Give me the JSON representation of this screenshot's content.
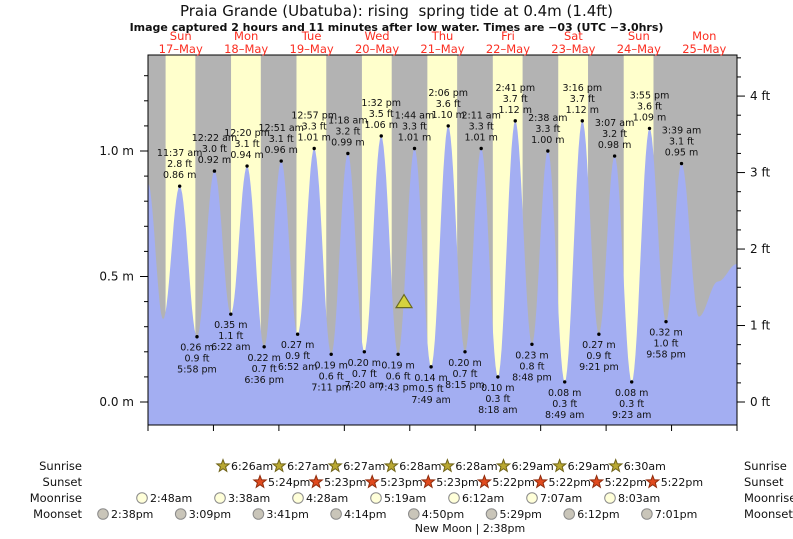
{
  "title": "Praia Grande (Ubatuba): rising  spring tide at 0.4m (1.4ft)",
  "subtitle": "Image captured 2 hours and 11 minutes after low water. Times are −03 (UTC −3.0hrs)",
  "colors": {
    "night_band": "#b3b3b3",
    "day_band": "#ffffcc",
    "water": "#a3aef2",
    "day_label_red": "#fb2d20",
    "annotation_text": "#111111",
    "sunrise_star": "#b9a832",
    "sunrise_star_outline": "#6f6318",
    "sunset_star": "#e04a1e",
    "sunset_star_outline": "#8f2c0c",
    "moonrise_circle": "#ffffd9",
    "moonset_circle": "#c9c5b9",
    "moon_outline": "#8a8a8a",
    "marker_fill": "#d6d23e",
    "marker_outline": "#6b6b1f"
  },
  "chart_data": {
    "type": "area",
    "title": "Praia Grande (Ubatuba): rising  spring tide at 0.4m (1.4ft)",
    "subtitle": "Image captured 2 hours and 11 minutes after low water. Times are −03 (UTC −3.0hrs)",
    "x_axis": {
      "span_days": 9,
      "days": [
        {
          "dow": "Sun",
          "date": "17–May"
        },
        {
          "dow": "Mon",
          "date": "18–May"
        },
        {
          "dow": "Tue",
          "date": "19–May"
        },
        {
          "dow": "Wed",
          "date": "20–May"
        },
        {
          "dow": "Thu",
          "date": "21–May"
        },
        {
          "dow": "Fri",
          "date": "22–May"
        },
        {
          "dow": "Sat",
          "date": "23–May"
        },
        {
          "dow": "Sun",
          "date": "24–May"
        },
        {
          "dow": "Mon",
          "date": "25–May"
        }
      ]
    },
    "y_axis_left": {
      "unit": "m",
      "tick_labels": [
        "0.0 m",
        "0.5 m",
        "1.0 m"
      ],
      "tick_values": [
        0.0,
        0.5,
        1.0
      ],
      "range_m": [
        -0.09,
        1.38
      ]
    },
    "y_axis_right": {
      "unit": "ft",
      "tick_labels": [
        "0 ft",
        "1 ft",
        "2 ft",
        "3 ft",
        "4 ft"
      ],
      "tick_values": [
        0,
        1,
        2,
        3,
        4
      ]
    },
    "tide_events": [
      {
        "t": 11.617,
        "type": "high",
        "m": 0.86,
        "labels": [
          "11:37 am",
          "2.8 ft",
          "0.86 m"
        ]
      },
      {
        "t": 17.967,
        "type": "low",
        "m": 0.26,
        "labels": [
          "0.26 m",
          "0.9 ft",
          "5:58 pm"
        ]
      },
      {
        "t": 24.367,
        "type": "high",
        "m": 0.92,
        "labels": [
          "12:22 am",
          "3.0 ft",
          "0.92 m"
        ]
      },
      {
        "t": 30.367,
        "type": "low",
        "m": 0.35,
        "labels": [
          "0.35 m",
          "1.1 ft",
          "6:22 am"
        ]
      },
      {
        "t": 36.333,
        "type": "high",
        "m": 0.94,
        "labels": [
          "12:20 pm",
          "3.1 ft",
          "0.94 m"
        ]
      },
      {
        "t": 42.6,
        "type": "low",
        "m": 0.22,
        "labels": [
          "0.22 m",
          "0.7 ft",
          "6:36 pm"
        ]
      },
      {
        "t": 48.85,
        "type": "high",
        "m": 0.96,
        "labels": [
          "12:51 am",
          "3.1 ft",
          "0.96 m"
        ]
      },
      {
        "t": 54.867,
        "type": "low",
        "m": 0.27,
        "labels": [
          "0.27 m",
          "0.9 ft",
          "6:52 am"
        ]
      },
      {
        "t": 60.95,
        "type": "high",
        "m": 1.01,
        "labels": [
          "12:57 pm",
          "3.3 ft",
          "1.01 m"
        ]
      },
      {
        "t": 67.183,
        "type": "low",
        "m": 0.19,
        "labels": [
          "0.19 m",
          "0.6 ft",
          "7:11 pm"
        ]
      },
      {
        "t": 73.3,
        "type": "high",
        "m": 0.99,
        "labels": [
          "1:18 am",
          "3.2 ft",
          "0.99 m"
        ]
      },
      {
        "t": 79.333,
        "type": "low",
        "m": 0.2,
        "labels": [
          "0.20 m",
          "0.7 ft",
          "7:20 am"
        ]
      },
      {
        "t": 85.533,
        "type": "high",
        "m": 1.06,
        "labels": [
          "1:32 pm",
          "3.5 ft",
          "1.06 m"
        ]
      },
      {
        "t": 91.717,
        "type": "low",
        "m": 0.19,
        "labels": [
          "0.19 m",
          "0.6 ft",
          "7:43 pm"
        ]
      },
      {
        "t": 97.733,
        "type": "high",
        "m": 1.01,
        "labels": [
          "1:44 am",
          "3.3 ft",
          "1.01 m"
        ]
      },
      {
        "t": 103.817,
        "type": "low",
        "m": 0.14,
        "labels": [
          "0.14 m",
          "0.5 ft",
          "7:49 am"
        ]
      },
      {
        "t": 110.1,
        "type": "high",
        "m": 1.1,
        "labels": [
          "2:06 pm",
          "3.6 ft",
          "1.10 m"
        ]
      },
      {
        "t": 116.25,
        "type": "low",
        "m": 0.2,
        "labels": [
          "0.20 m",
          "0.7 ft",
          "8:15 pm"
        ]
      },
      {
        "t": 122.183,
        "type": "high",
        "m": 1.01,
        "labels": [
          "2:11 am",
          "3.3 ft",
          "1.01 m"
        ]
      },
      {
        "t": 128.3,
        "type": "low",
        "m": 0.1,
        "labels": [
          "0.10 m",
          "0.3 ft",
          "8:18 am"
        ]
      },
      {
        "t": 134.683,
        "type": "high",
        "m": 1.12,
        "labels": [
          "2:41 pm",
          "3.7 ft",
          "1.12 m"
        ]
      },
      {
        "t": 140.8,
        "type": "low",
        "m": 0.23,
        "labels": [
          "0.23 m",
          "0.8 ft",
          "8:48 pm"
        ]
      },
      {
        "t": 146.633,
        "type": "high",
        "m": 1.0,
        "labels": [
          "2:38 am",
          "3.3 ft",
          "1.00 m"
        ]
      },
      {
        "t": 152.817,
        "type": "low",
        "m": 0.08,
        "labels": [
          "0.08 m",
          "0.3 ft",
          "8:49 am"
        ]
      },
      {
        "t": 159.267,
        "type": "high",
        "m": 1.12,
        "labels": [
          "3:16 pm",
          "3.7 ft",
          "1.12 m"
        ]
      },
      {
        "t": 165.35,
        "type": "low",
        "m": 0.27,
        "labels": [
          "0.27 m",
          "0.9 ft",
          "9:21 pm"
        ]
      },
      {
        "t": 171.117,
        "type": "high",
        "m": 0.98,
        "labels": [
          "3:07 am",
          "3.2 ft",
          "0.98 m"
        ]
      },
      {
        "t": 177.383,
        "type": "low",
        "m": 0.08,
        "labels": [
          "0.08 m",
          "0.3 ft",
          "9:23 am"
        ]
      },
      {
        "t": 183.917,
        "type": "high",
        "m": 1.09,
        "labels": [
          "3:55 pm",
          "3.6 ft",
          "1.09 m"
        ]
      },
      {
        "t": 189.967,
        "type": "low",
        "m": 0.32,
        "labels": [
          "0.32 m",
          "1.0 ft",
          "9:58 pm"
        ]
      },
      {
        "t": 195.65,
        "type": "high",
        "m": 0.95,
        "labels": [
          "3:39 am",
          "3.1 ft",
          "0.95 m"
        ]
      }
    ],
    "curve_helper_points": [
      {
        "t": 0.0,
        "m": 0.87
      },
      {
        "t": 5.53,
        "m": 0.33
      },
      {
        "t": 202.0,
        "m": 0.34
      },
      {
        "t": 209.0,
        "m": 0.48
      },
      {
        "t": 216.0,
        "m": 0.55
      }
    ],
    "current_marker": {
      "t": 93.9,
      "m": 0.4
    }
  },
  "astro": {
    "rows": [
      {
        "key": "sunrise",
        "label": "Sunrise",
        "icon": "sunrise-star-icon",
        "times": [
          "6:26am",
          "6:27am",
          "6:27am",
          "6:28am",
          "6:28am",
          "6:29am",
          "6:29am",
          "6:30am"
        ]
      },
      {
        "key": "sunset",
        "label": "Sunset",
        "icon": "sunset-star-icon",
        "times": [
          "5:24pm",
          "5:23pm",
          "5:23pm",
          "5:23pm",
          "5:22pm",
          "5:22pm",
          "5:22pm",
          "5:22pm"
        ]
      },
      {
        "key": "moonrise",
        "label": "Moonrise",
        "icon": "moonrise-circle-icon",
        "times": [
          "2:48am",
          "3:38am",
          "4:28am",
          "5:19am",
          "6:12am",
          "7:07am",
          "8:03am"
        ]
      },
      {
        "key": "moonset",
        "label": "Moonset",
        "icon": "moonset-circle-icon",
        "times": [
          "2:38pm",
          "3:09pm",
          "3:41pm",
          "4:14pm",
          "4:50pm",
          "5:29pm",
          "6:12pm",
          "7:01pm"
        ]
      }
    ],
    "new_moon": {
      "phase": "New Moon",
      "separator": "|",
      "time": "2:38pm"
    }
  }
}
